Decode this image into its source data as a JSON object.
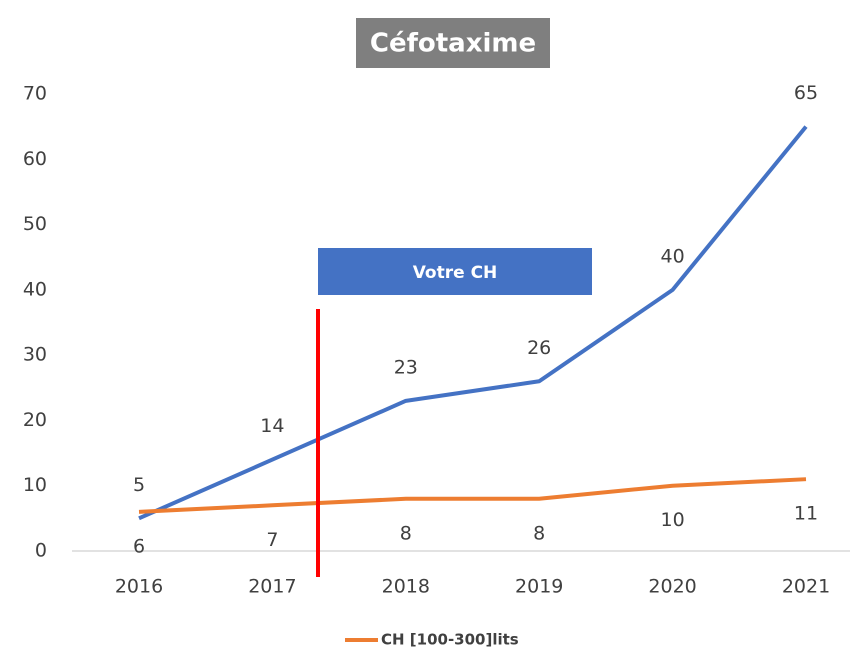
{
  "chart_data": {
    "type": "line",
    "title": "Céfotaxime",
    "annotations": [
      "Votre CH"
    ],
    "categories": [
      "2016",
      "2017",
      "2018",
      "2019",
      "2020",
      "2021"
    ],
    "series": [
      {
        "color": "#4472c4",
        "values": [
          5,
          14,
          23,
          26,
          40,
          65
        ]
      },
      {
        "name": "CH [100-300]lits",
        "color": "#ed7d31",
        "values": [
          6,
          7,
          8,
          8,
          10,
          11
        ]
      }
    ],
    "ylim": [
      0,
      70
    ],
    "yticks": [
      0,
      10,
      20,
      30,
      40,
      50,
      60,
      70
    ],
    "grid": false,
    "legend": "bottom"
  }
}
